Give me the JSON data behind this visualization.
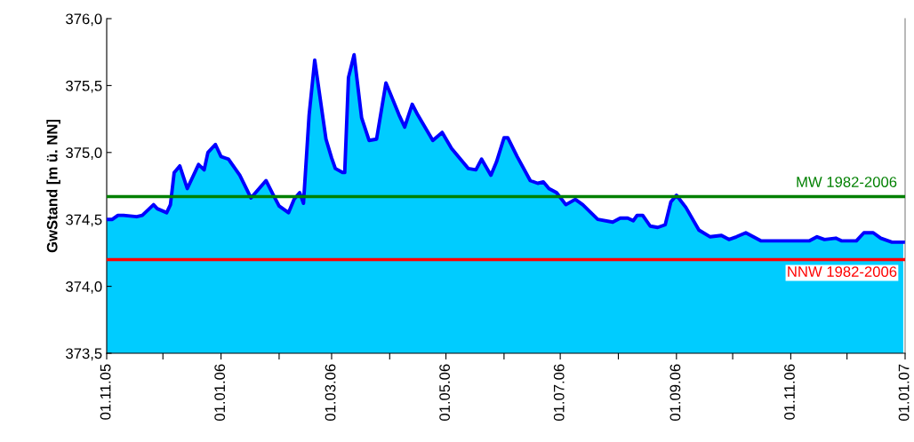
{
  "chart_data": {
    "type": "area",
    "ylabel": "GwStand [m ü. NN]",
    "x": [
      "2005-11-01",
      "2005-11-04",
      "2005-11-07",
      "2005-11-10",
      "2005-11-17",
      "2005-11-20",
      "2005-11-26",
      "2005-11-28",
      "2005-12-03",
      "2005-12-05",
      "2005-12-07",
      "2005-12-10",
      "2005-12-14",
      "2005-12-20",
      "2005-12-23",
      "2005-12-25",
      "2005-12-29",
      "2006-01-01",
      "2006-01-05",
      "2006-01-11",
      "2006-01-17",
      "2006-01-25",
      "2006-01-29",
      "2006-02-01",
      "2006-02-06",
      "2006-02-09",
      "2006-02-12",
      "2006-02-14",
      "2006-02-17",
      "2006-02-20",
      "2006-02-26",
      "2006-03-01",
      "2006-03-03",
      "2006-03-07",
      "2006-03-08",
      "2006-03-10",
      "2006-03-13",
      "2006-03-17",
      "2006-03-21",
      "2006-03-25",
      "2006-03-30",
      "2006-04-06",
      "2006-04-09",
      "2006-04-13",
      "2006-04-16",
      "2006-04-24",
      "2006-04-29",
      "2006-05-04",
      "2006-05-13",
      "2006-05-17",
      "2006-05-20",
      "2006-05-25",
      "2006-05-28",
      "2006-06-01",
      "2006-06-03",
      "2006-06-08",
      "2006-06-15",
      "2006-06-19",
      "2006-06-22",
      "2006-06-25",
      "2006-06-29",
      "2006-07-04",
      "2006-07-09",
      "2006-07-13",
      "2006-07-21",
      "2006-07-29",
      "2006-08-02",
      "2006-08-06",
      "2006-08-09",
      "2006-08-11",
      "2006-08-14",
      "2006-08-18",
      "2006-08-22",
      "2006-08-26",
      "2006-08-29",
      "2006-09-01",
      "2006-09-06",
      "2006-09-13",
      "2006-09-19",
      "2006-09-25",
      "2006-09-29",
      "2006-10-03",
      "2006-10-08",
      "2006-10-12",
      "2006-10-16",
      "2006-11-11",
      "2006-11-15",
      "2006-11-19",
      "2006-11-25",
      "2006-11-28",
      "2006-12-06",
      "2006-12-10",
      "2006-12-15",
      "2006-12-19",
      "2006-12-25",
      "2006-12-31"
    ],
    "series": [
      {
        "color": "#00ccff",
        "values": [
          374.5,
          374.5,
          374.53,
          374.53,
          374.52,
          374.53,
          374.61,
          374.58,
          374.55,
          374.61,
          374.85,
          374.9,
          374.73,
          374.91,
          374.87,
          375.0,
          375.06,
          374.97,
          374.95,
          374.83,
          374.66,
          374.79,
          374.68,
          374.6,
          374.55,
          374.65,
          374.7,
          374.62,
          375.28,
          375.69,
          375.1,
          374.96,
          374.88,
          374.85,
          374.85,
          375.56,
          375.73,
          375.26,
          375.09,
          375.1,
          375.52,
          375.28,
          375.19,
          375.36,
          375.28,
          375.09,
          375.15,
          375.03,
          374.88,
          374.87,
          374.95,
          374.83,
          374.93,
          375.11,
          375.11,
          374.97,
          374.79,
          374.77,
          374.78,
          374.73,
          374.7,
          374.61,
          374.65,
          374.61,
          374.5,
          374.48,
          374.51,
          374.51,
          374.49,
          374.53,
          374.53,
          374.45,
          374.44,
          374.46,
          374.63,
          374.68,
          374.59,
          374.42,
          374.37,
          374.38,
          374.35,
          374.37,
          374.4,
          374.37,
          374.34,
          374.34,
          374.37,
          374.35,
          374.36,
          374.34,
          374.34,
          374.4,
          374.4,
          374.36,
          374.33,
          374.33
        ]
      }
    ],
    "xlim": [
      "2005-11-01",
      "2007-01-01"
    ],
    "xticks": [
      {
        "value": "2005-11-01",
        "label": "01.11.05"
      },
      {
        "value": "2005-12-01",
        "label": null
      },
      {
        "value": "2006-01-01",
        "label": "01.01.06"
      },
      {
        "value": "2006-02-01",
        "label": null
      },
      {
        "value": "2006-03-01",
        "label": "01.03.06"
      },
      {
        "value": "2006-04-01",
        "label": null
      },
      {
        "value": "2006-05-01",
        "label": "01.05.06"
      },
      {
        "value": "2006-06-01",
        "label": null
      },
      {
        "value": "2006-07-01",
        "label": "01.07.06"
      },
      {
        "value": "2006-08-01",
        "label": null
      },
      {
        "value": "2006-09-01",
        "label": "01.09.06"
      },
      {
        "value": "2006-10-01",
        "label": null
      },
      {
        "value": "2006-11-01",
        "label": "01.11.06"
      },
      {
        "value": "2006-12-01",
        "label": null
      },
      {
        "value": "2007-01-01",
        "label": "01.01.07"
      }
    ],
    "ylim": [
      373.5,
      376.0
    ],
    "yticks": [
      {
        "value": 373.5,
        "label": "373,5"
      },
      {
        "value": 374.0,
        "label": "374,0"
      },
      {
        "value": 374.5,
        "label": "374,5"
      },
      {
        "value": 375.0,
        "label": "375,0"
      },
      {
        "value": 375.5,
        "label": "375,5"
      },
      {
        "value": 376.0,
        "label": "376,0"
      }
    ],
    "ref_lines": [
      {
        "axis": "y",
        "value": 374.67,
        "label": "MW 1982-2006",
        "color": "#008000"
      },
      {
        "axis": "y",
        "value": 374.2,
        "label": "NNW 1982-2006",
        "color": "#ff0000"
      }
    ],
    "grid": false,
    "legend": false,
    "marker": "none",
    "line_style": "solid"
  }
}
